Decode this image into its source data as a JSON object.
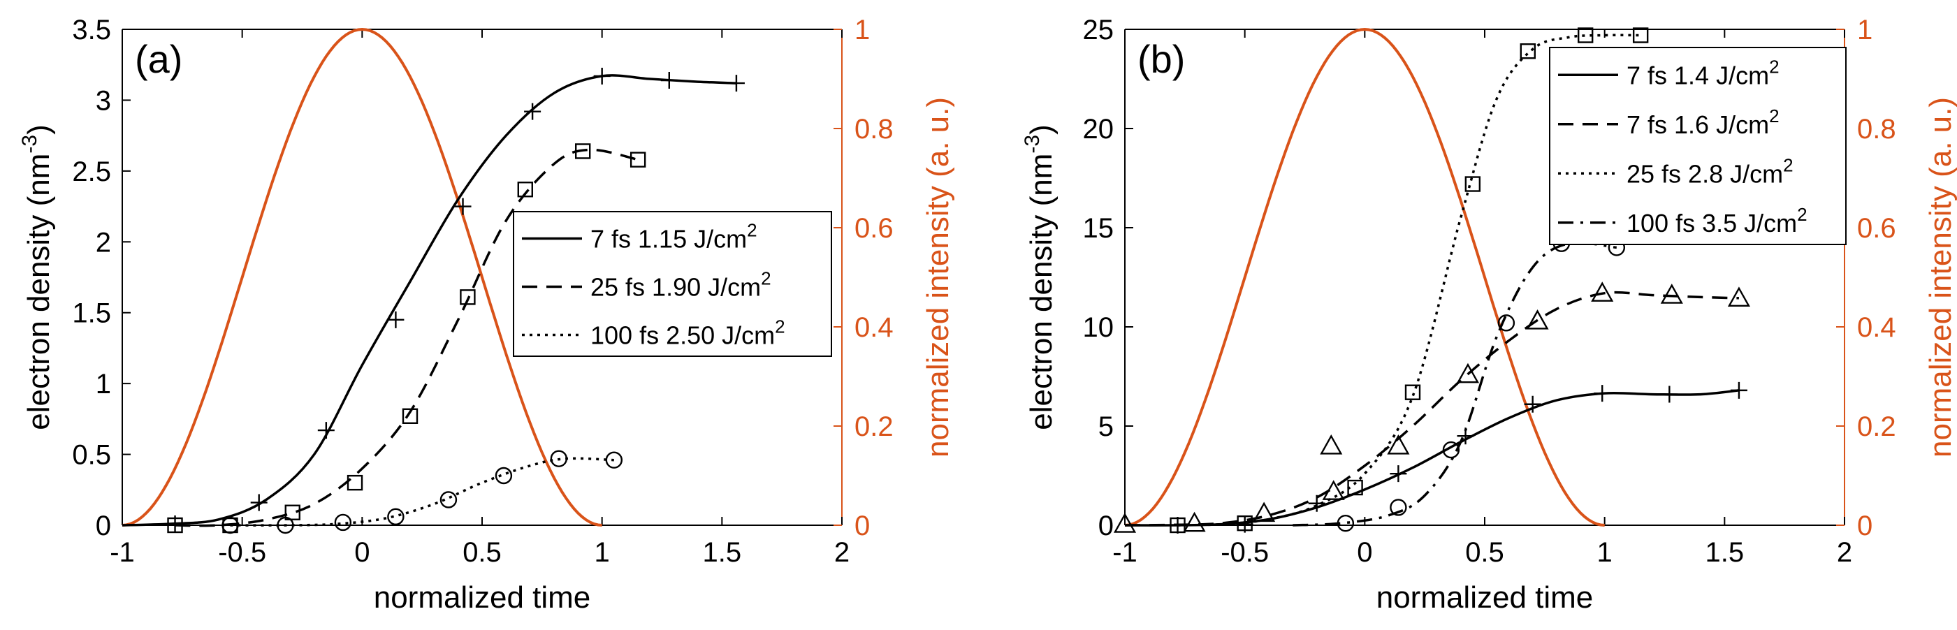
{
  "colors": {
    "axis": "#000000",
    "intensity": "#D95319",
    "series": "#000000"
  },
  "chart_data": [
    {
      "type": "line",
      "panel_label": "(a)",
      "xlabel": "normalized time",
      "ylabel": "electron density (nm",
      "ylabel_sup": "-3",
      "ylabel_end": ")",
      "y2label": "normalized intensity (a. u.)",
      "xlim": [
        -1,
        2
      ],
      "ylim": [
        0,
        3.5
      ],
      "y2lim": [
        0,
        1
      ],
      "xticks": [
        -1,
        -0.5,
        0,
        0.5,
        1,
        1.5,
        2
      ],
      "xtick_labels": [
        "-1",
        "-0.5",
        "0",
        "0.5",
        "1",
        "1.5",
        "2"
      ],
      "yticks": [
        0,
        0.5,
        1,
        1.5,
        2,
        2.5,
        3,
        3.5
      ],
      "ytick_labels": [
        "0",
        "0.5",
        "1",
        "1.5",
        "2",
        "2.5",
        "3",
        "3.5"
      ],
      "y2ticks": [
        0,
        0.2,
        0.4,
        0.6,
        0.8,
        1
      ],
      "y2tick_labels": [
        "0",
        "0.2",
        "0.4",
        "0.6",
        "0.8",
        "1"
      ],
      "intensity_curve": {
        "name": "normalized intensity",
        "x_start": -1,
        "x_end": 1,
        "peak_x": 0
      },
      "legend": {
        "position": "center-right"
      },
      "series": [
        {
          "name": "7 fs 1.15 J/cm",
          "sup": "2",
          "dash": "solid",
          "marker": "plus",
          "x": [
            -1,
            -0.8,
            -0.6,
            -0.4,
            -0.2,
            0,
            0.2,
            0.4,
            0.6,
            0.8,
            1,
            1.2,
            1.4,
            1.56
          ],
          "y": [
            0,
            0.01,
            0.04,
            0.18,
            0.5,
            1.13,
            1.72,
            2.3,
            2.75,
            3.05,
            3.17,
            3.15,
            3.13,
            3.12
          ],
          "marker_x": [
            -0.78,
            -0.43,
            -0.15,
            0.14,
            0.42,
            0.71,
            1.0,
            1.28,
            1.56
          ],
          "marker_y": [
            0.01,
            0.16,
            0.67,
            1.45,
            2.25,
            2.92,
            3.17,
            3.14,
            3.12
          ]
        },
        {
          "name": "25 fs 1.90 J/cm",
          "sup": "2",
          "dash": "dashed",
          "marker": "square",
          "x": [
            -0.78,
            -0.6,
            -0.4,
            -0.2,
            0,
            0.2,
            0.4,
            0.6,
            0.8,
            0.95,
            1.15
          ],
          "y": [
            0.0,
            0.0,
            0.04,
            0.15,
            0.4,
            0.8,
            1.45,
            2.15,
            2.55,
            2.65,
            2.58
          ],
          "marker_x": [
            -0.78,
            -0.55,
            -0.29,
            -0.03,
            0.2,
            0.44,
            0.68,
            0.92,
            1.15
          ],
          "marker_y": [
            0.0,
            0.0,
            0.09,
            0.3,
            0.77,
            1.61,
            2.37,
            2.64,
            2.58
          ]
        },
        {
          "name": "100 fs 2.50 J/cm",
          "sup": "2",
          "dash": "dotted",
          "marker": "circle",
          "x": [
            -0.55,
            -0.3,
            -0.1,
            0.1,
            0.3,
            0.5,
            0.7,
            0.85,
            1.05
          ],
          "y": [
            0,
            0,
            0.01,
            0.05,
            0.15,
            0.3,
            0.42,
            0.47,
            0.46
          ],
          "marker_x": [
            -0.55,
            -0.32,
            -0.08,
            0.14,
            0.36,
            0.59,
            0.82,
            1.05
          ],
          "marker_y": [
            0.0,
            0.0,
            0.02,
            0.06,
            0.18,
            0.35,
            0.47,
            0.46
          ]
        }
      ]
    },
    {
      "type": "line",
      "panel_label": "(b)",
      "xlabel": "normalized time",
      "ylabel": "electron density (nm",
      "ylabel_sup": "-3",
      "ylabel_end": ")",
      "y2label": "normalized intensity (a. u.)",
      "xlim": [
        -1,
        2
      ],
      "ylim": [
        0,
        25
      ],
      "y2lim": [
        0,
        1
      ],
      "xticks": [
        -1,
        -0.5,
        0,
        0.5,
        1,
        1.5,
        2
      ],
      "xtick_labels": [
        "-1",
        "-0.5",
        "0",
        "0.5",
        "1",
        "1.5",
        "2"
      ],
      "yticks": [
        0,
        5,
        10,
        15,
        20,
        25
      ],
      "ytick_labels": [
        "0",
        "5",
        "10",
        "15",
        "20",
        "25"
      ],
      "y2ticks": [
        0,
        0.2,
        0.4,
        0.6,
        0.8,
        1
      ],
      "y2tick_labels": [
        "0",
        "0.2",
        "0.4",
        "0.6",
        "0.8",
        "1"
      ],
      "intensity_curve": {
        "name": "normalized intensity",
        "x_start": -1,
        "x_end": 1,
        "peak_x": 0
      },
      "legend": {
        "position": "top-right"
      },
      "series": [
        {
          "name": "7 fs 1.4 J/cm",
          "sup": "2",
          "dash": "solid",
          "marker": "plus",
          "x": [
            -1,
            -0.8,
            -0.6,
            -0.4,
            -0.2,
            0,
            0.2,
            0.4,
            0.6,
            0.8,
            1,
            1.2,
            1.4,
            1.56
          ],
          "y": [
            0,
            0,
            0.05,
            0.3,
            0.9,
            1.8,
            2.9,
            4.2,
            5.4,
            6.3,
            6.65,
            6.6,
            6.6,
            6.8
          ],
          "marker_x": [
            -0.78,
            -0.5,
            -0.2,
            0.14,
            0.42,
            0.7,
            0.99,
            1.27,
            1.56
          ],
          "marker_y": [
            0.0,
            0.05,
            1.1,
            2.6,
            4.5,
            6.1,
            6.65,
            6.6,
            6.8
          ]
        },
        {
          "name": "7 fs 1.6 J/cm",
          "sup": "2",
          "dash": "dashed",
          "marker": "triangle",
          "x": [
            -1,
            -0.8,
            -0.6,
            -0.4,
            -0.2,
            0,
            0.2,
            0.4,
            0.6,
            0.8,
            1,
            1.2,
            1.4,
            1.56
          ],
          "y": [
            0,
            0.02,
            0.1,
            0.5,
            1.4,
            3.0,
            5.0,
            7.3,
            9.3,
            10.9,
            11.7,
            11.6,
            11.5,
            11.45
          ],
          "marker_x": [
            -1,
            -0.71,
            -0.42,
            -0.13,
            -0.14,
            0.14,
            0.43,
            0.72,
            0.99,
            1.28,
            1.56
          ],
          "marker_y": [
            0.05,
            0.1,
            0.6,
            1.7,
            4.0,
            4.0,
            7.6,
            10.3,
            11.7,
            11.6,
            11.45
          ]
        },
        {
          "name": "25 fs 2.8 J/cm",
          "sup": "2",
          "dash": "dotted",
          "marker": "square",
          "x": [
            -0.78,
            -0.6,
            -0.4,
            -0.2,
            0,
            0.2,
            0.4,
            0.55,
            0.7,
            0.85,
            1.0,
            1.15
          ],
          "y": [
            0,
            0.05,
            0.3,
            1.0,
            2.6,
            6.5,
            15.5,
            21.5,
            24.0,
            24.6,
            24.7,
            24.7
          ],
          "marker_x": [
            -0.78,
            -0.5,
            -0.04,
            0.2,
            0.45,
            0.68,
            0.92,
            1.15
          ],
          "marker_y": [
            0.0,
            0.1,
            1.9,
            6.7,
            17.2,
            23.9,
            24.7,
            24.7
          ]
        },
        {
          "name": "100 fs 3.5 J/cm",
          "sup": "2",
          "dash": "dashdot",
          "marker": "circle",
          "x": [
            -0.3,
            -0.1,
            0.1,
            0.25,
            0.4,
            0.55,
            0.7,
            0.85,
            1.05
          ],
          "y": [
            0,
            0.1,
            0.5,
            1.5,
            4.2,
            9.5,
            13.0,
            14.2,
            14.0
          ],
          "marker_x": [
            -0.08,
            0.14,
            0.36,
            0.59,
            0.82,
            1.05
          ],
          "marker_y": [
            0.1,
            0.9,
            3.8,
            10.2,
            14.2,
            14.0
          ]
        }
      ]
    }
  ]
}
